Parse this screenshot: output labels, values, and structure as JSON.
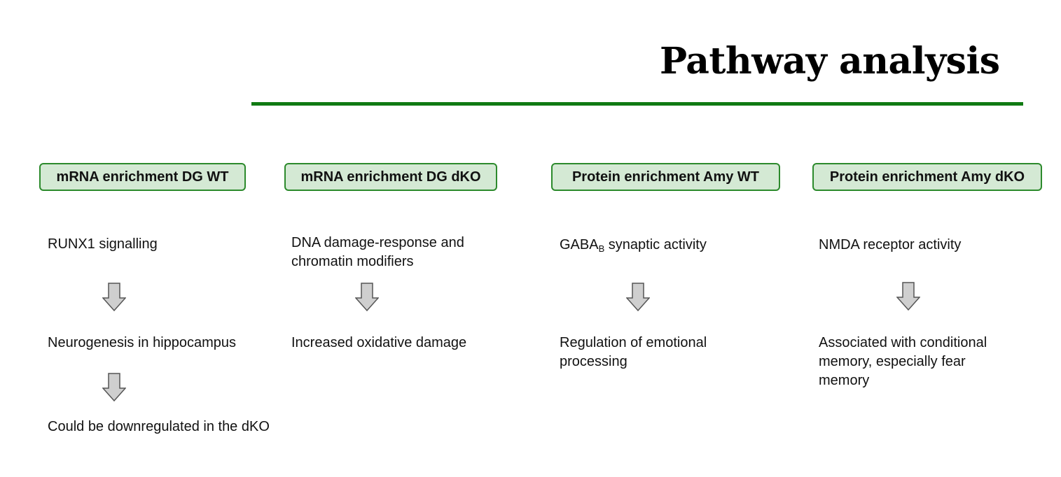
{
  "title": "Pathway analysis",
  "colors": {
    "accent_green": "#0f7a12",
    "box_fill": "#d4e9d4",
    "box_border": "#2c8a2c",
    "arrow_fill": "#cfcfcf",
    "arrow_stroke": "#555555"
  },
  "columns": [
    {
      "header": "mRNA enrichment DG WT",
      "pathway": "RUNX1 signalling",
      "effect": "Neurogenesis in hippocampus",
      "note": "Could be downregulated in the dKO"
    },
    {
      "header": "mRNA enrichment DG dKO",
      "pathway_line1": "DNA damage-response and",
      "pathway_line2": "chromatin modifiers",
      "effect": "Increased oxidative damage"
    },
    {
      "header": "Protein enrichment Amy WT",
      "pathway_main": "GABA",
      "pathway_sub": "B",
      "pathway_rest": " synaptic activity",
      "effect_line1": "Regulation of emotional",
      "effect_line2": "processing"
    },
    {
      "header": "Protein enrichment Amy dKO",
      "pathway": "NMDA receptor activity",
      "effect_line1": "Associated with conditional",
      "effect_line2": "memory, especially fear",
      "effect_line3": "memory"
    }
  ],
  "icons": {
    "arrow": "down-arrow-icon"
  }
}
